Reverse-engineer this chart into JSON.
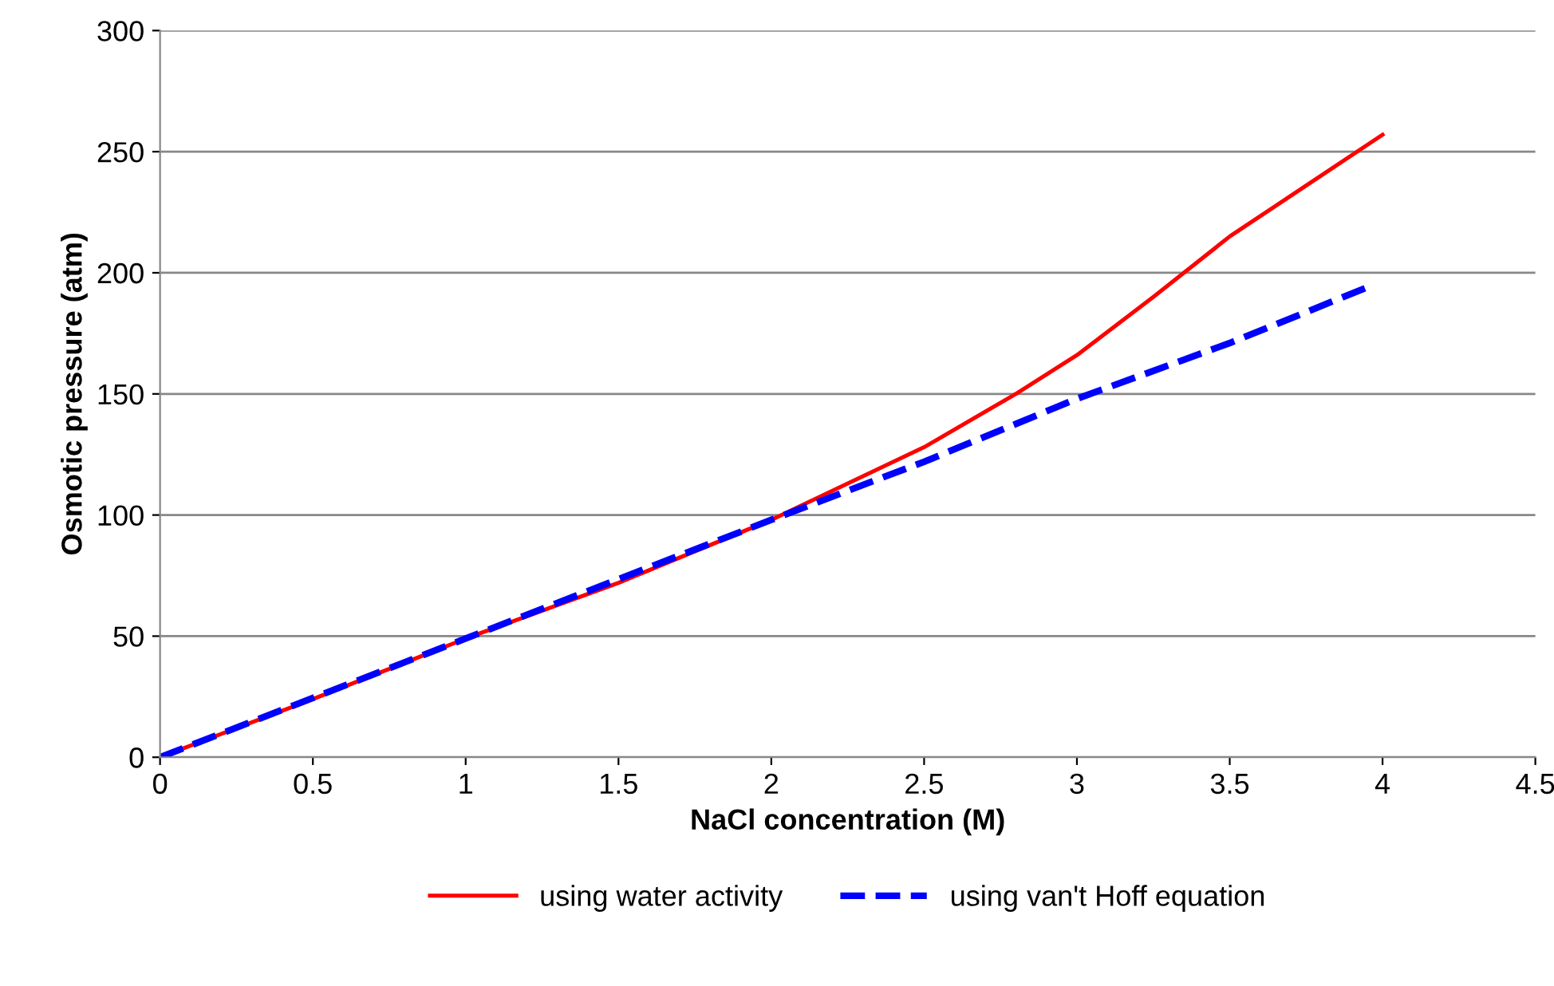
{
  "chart_data": {
    "type": "line",
    "xlabel": "NaCl concentration (M)",
    "ylabel": "Osmotic pressure (atm)",
    "xlim": [
      0,
      4.5
    ],
    "xticks": [
      0,
      0.5,
      1,
      1.5,
      2,
      2.5,
      3,
      3.5,
      4,
      4.5
    ],
    "ylim": [
      0,
      300
    ],
    "yticks": [
      0,
      50,
      100,
      150,
      200,
      250,
      300
    ],
    "grid": "y",
    "legend": "bottom",
    "series": [
      {
        "name": "using water activity",
        "color": "#ff0000",
        "line_style": "solid",
        "x": [
          0,
          0.5,
          1,
          1.5,
          2,
          2.5,
          2.8,
          3,
          3.25,
          3.5,
          3.75,
          4
        ],
        "values": [
          0,
          24,
          49,
          72,
          98,
          128,
          150,
          166,
          190,
          215,
          236,
          257
        ]
      },
      {
        "name": "using van't Hoff equation",
        "color": "#0000ff",
        "line_style": "dashed",
        "x": [
          0,
          0.5,
          1,
          1.5,
          2,
          2.5,
          3,
          3.5,
          3.95
        ],
        "values": [
          0,
          24.5,
          49,
          73.5,
          98,
          122,
          148,
          171,
          194
        ]
      }
    ]
  }
}
